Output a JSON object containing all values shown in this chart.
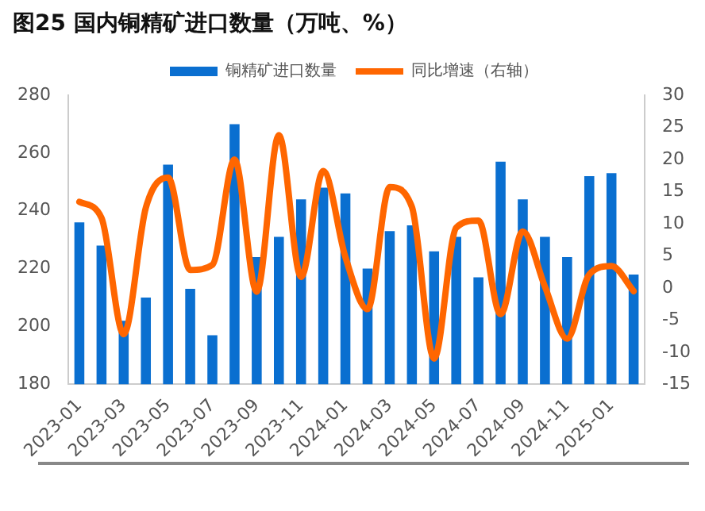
{
  "chart_data": {
    "type": "bar",
    "title": "图25 国内铜精矿进口数量（万吨、%）",
    "categories": [
      "2023-01",
      null,
      "2023-03",
      null,
      "2023-05",
      null,
      "2023-07",
      null,
      "2023-09",
      null,
      "2023-11",
      null,
      "2024-01",
      null,
      "2024-03",
      null,
      "2024-05",
      null,
      "2024-07",
      null,
      "2024-09",
      null,
      "2024-11",
      null,
      "2025-01",
      null
    ],
    "series": [
      {
        "name": "铜精矿进口数量",
        "color": "#0a6fd0",
        "values": [
          236,
          228,
          202,
          210,
          256,
          213,
          197,
          270,
          224,
          231,
          244,
          248,
          246,
          220,
          233,
          235,
          226,
          231,
          217,
          257,
          244,
          231,
          224,
          252,
          253,
          218
        ]
      },
      {
        "name": "同比增速（右轴）",
        "type": "line",
        "axis": "y2",
        "color": "#ff6600",
        "values": [
          13.4,
          10.9,
          -7.2,
          12.5,
          17.2,
          2.8,
          3.6,
          20,
          -0.6,
          23.8,
          1.7,
          18.2,
          4.8,
          -3.3,
          15.7,
          12.6,
          -11,
          9.4,
          10.5,
          -4.1,
          8.8,
          0.2,
          -7.9,
          2.1,
          3.4,
          -0.5
        ]
      }
    ],
    "ylim": [
      180,
      280
    ],
    "yticks": [
      180,
      200,
      220,
      240,
      260,
      280
    ],
    "y2lim": [
      -15,
      30
    ],
    "y2ticks": [
      -15,
      -10,
      -5,
      0,
      5,
      10,
      15,
      20,
      25,
      30
    ],
    "legend": "top",
    "marker": "none"
  }
}
